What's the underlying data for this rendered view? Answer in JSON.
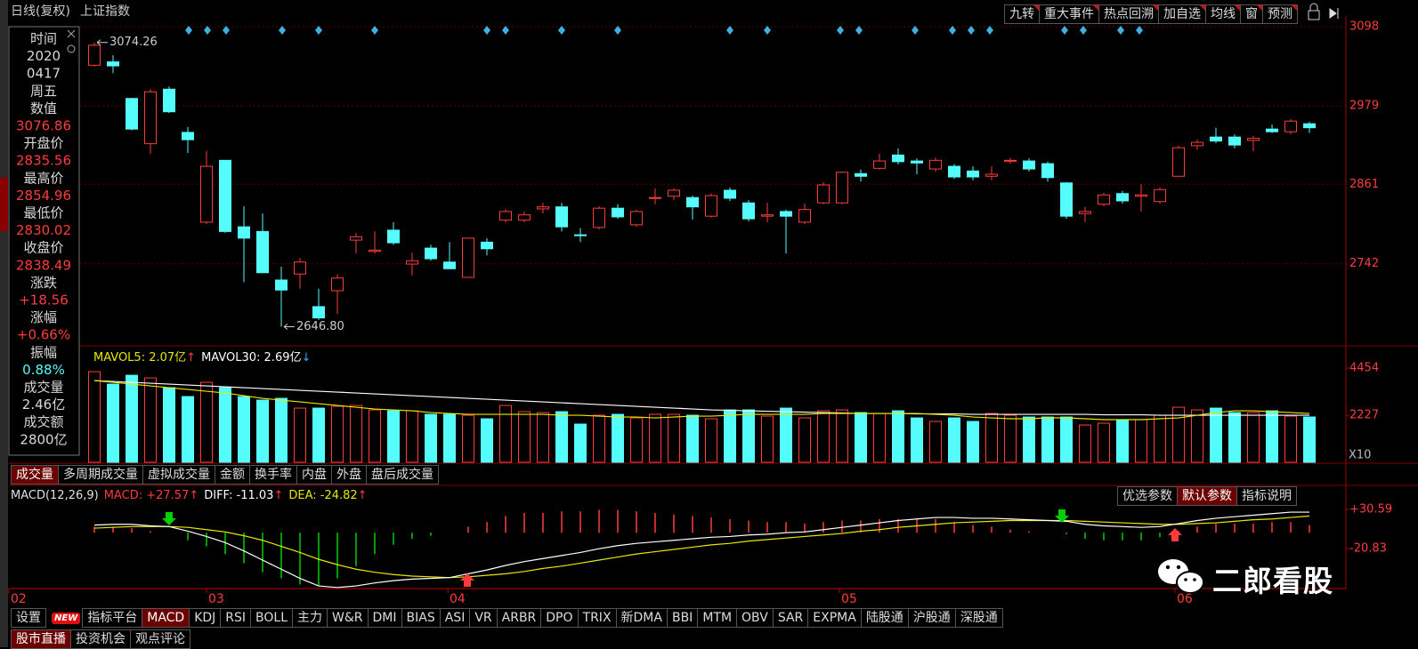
{
  "header": {
    "period": "日线(复权)",
    "symbol": "上证指数"
  },
  "top_buttons": [
    "九转",
    "重大事件",
    "热点回溯",
    "加自选",
    "均线",
    "窗",
    "预测"
  ],
  "info_panel": {
    "rows": [
      {
        "label": "时间",
        "values": [
          "2020",
          "0417",
          "周五"
        ],
        "color": "#d8d8d8"
      },
      {
        "label": "数值",
        "values": [
          "3076.86"
        ],
        "color": "#ff3c3c"
      },
      {
        "label": "开盘价",
        "values": [
          "2835.56"
        ],
        "color": "#ff3c3c"
      },
      {
        "label": "最高价",
        "values": [
          "2854.96"
        ],
        "color": "#ff3c3c"
      },
      {
        "label": "最低价",
        "values": [
          "2830.02"
        ],
        "color": "#ff3c3c"
      },
      {
        "label": "收盘价",
        "values": [
          "2838.49"
        ],
        "color": "#ff3c3c"
      },
      {
        "label": "涨跌",
        "values": [
          "+18.56"
        ],
        "color": "#ff3c3c"
      },
      {
        "label": "涨幅",
        "values": [
          "+0.66%"
        ],
        "color": "#ff3c3c"
      },
      {
        "label": "振幅",
        "values": [
          "0.88%"
        ],
        "color": "#54fcfc"
      },
      {
        "label": "成交量",
        "values": [
          "2.46亿"
        ],
        "color": "#d8d8d8"
      },
      {
        "label": "成交额",
        "values": [
          "2800亿"
        ],
        "color": "#d8d8d8"
      }
    ]
  },
  "price_chart": {
    "up_color": "#ff3c3c",
    "down_color": "#54fcfc",
    "grid": true,
    "ylim": [
      2619.4,
      3124.7
    ],
    "yticks": [
      3098,
      2979,
      2861,
      2742
    ],
    "open": [
      3040,
      3045,
      2990,
      2922,
      3004,
      2939,
      2804,
      2897,
      2797,
      2790,
      2717,
      2726,
      2677,
      2701,
      2777,
      2760,
      2792,
      2741,
      2765,
      2744,
      2721,
      2774,
      2807,
      2807,
      2824,
      2827,
      2785,
      2796,
      2825,
      2800,
      2840,
      2843,
      2841,
      2813,
      2852,
      2833,
      2813,
      2820,
      2804,
      2833,
      2833,
      2877,
      2885,
      2905,
      2896,
      2884,
      2888,
      2881,
      2873,
      2896,
      2896,
      2892,
      2863,
      2817,
      2831,
      2847,
      2843,
      2835,
      2873,
      2919,
      2932,
      2932,
      2927,
      2944,
      2940,
      2952
    ],
    "high": [
      3074.26,
      3055,
      2991,
      3004,
      3008,
      2947,
      2911,
      2897,
      2828,
      2817,
      2737,
      2750,
      2704,
      2726,
      2788,
      2790,
      2804,
      2758,
      2770,
      2774,
      2780,
      2780,
      2823,
      2820,
      2833,
      2833,
      2795,
      2828,
      2831,
      2823,
      2855,
      2855,
      2844,
      2847,
      2856,
      2837,
      2833,
      2823,
      2832,
      2864,
      2880,
      2883,
      2907,
      2915,
      2900,
      2901,
      2891,
      2888,
      2888,
      2901,
      2900,
      2895,
      2864,
      2827,
      2848,
      2851,
      2861,
      2856,
      2919,
      2928,
      2946,
      2936,
      2934,
      2951,
      2959,
      2955
    ],
    "low": [
      3038,
      3028,
      2942,
      2907,
      2968,
      2908,
      2801,
      2788,
      2714,
      2728,
      2646.8,
      2704,
      2657,
      2666,
      2757,
      2757,
      2770,
      2724,
      2746,
      2733,
      2721,
      2754,
      2804,
      2804,
      2817,
      2790,
      2774,
      2793,
      2809,
      2797,
      2831,
      2837,
      2808,
      2811,
      2836,
      2805,
      2804,
      2757,
      2801,
      2831,
      2831,
      2865,
      2883,
      2891,
      2876,
      2880,
      2869,
      2867,
      2867,
      2892,
      2880,
      2865,
      2809,
      2804,
      2828,
      2832,
      2820,
      2832,
      2872,
      2913,
      2923,
      2915,
      2911,
      2938,
      2936,
      2938
    ],
    "close": [
      3070,
      3039,
      2944,
      3000,
      2970,
      2928,
      2888,
      2790,
      2780,
      2728,
      2702,
      2744,
      2660,
      2720,
      2782,
      2762,
      2773,
      2746,
      2749,
      2734,
      2780,
      2764,
      2820,
      2815,
      2827,
      2797,
      2784,
      2825,
      2812,
      2820,
      2841,
      2852,
      2827,
      2844,
      2840,
      2809,
      2815,
      2813,
      2823,
      2860,
      2879,
      2873,
      2896,
      2895,
      2893,
      2897,
      2872,
      2872,
      2876,
      2897,
      2884,
      2871,
      2813,
      2820,
      2845,
      2836,
      2845,
      2853,
      2916,
      2924,
      2926,
      2920,
      2930,
      2940,
      2956,
      2946
    ],
    "extremes": {
      "high": {
        "value": 3074.26,
        "label": "3074.26"
      },
      "low": {
        "value": 2646.8,
        "label": "2646.80"
      }
    }
  },
  "volume_chart": {
    "ylim": [
      0,
      5380
    ],
    "yticks": [
      4454,
      2227
    ],
    "scale_label": "X10",
    "legend": [
      {
        "text": "MAVOL5: 2.07亿",
        "arrow": "↑",
        "color": "#e8e800",
        "arrow_color": "#ff3c3c"
      },
      {
        "text": "MAVOL30: 2.69亿",
        "arrow": "↓",
        "color": "#ffffff",
        "arrow_color": "#3aa0ff"
      }
    ],
    "values": [
      4284,
      3696,
      4116,
      3990,
      3528,
      3108,
      3780,
      3528,
      3108,
      2940,
      3024,
      2562,
      2562,
      2646,
      2688,
      2478,
      2436,
      2436,
      2268,
      2268,
      2226,
      2058,
      2688,
      2394,
      2352,
      2394,
      1806,
      2226,
      2268,
      2100,
      2268,
      2268,
      2226,
      2058,
      2478,
      2478,
      2184,
      2562,
      2100,
      2436,
      2478,
      2352,
      2310,
      2436,
      2100,
      1932,
      2100,
      1932,
      2310,
      2226,
      2142,
      2142,
      2142,
      1764,
      1848,
      2016,
      2016,
      2226,
      2604,
      2478,
      2562,
      2352,
      2352,
      2436,
      2184,
      2142
    ],
    "mavol5": [
      3864,
      3780,
      3696,
      3612,
      3528,
      3444,
      3360,
      3276,
      3150,
      3024,
      2940,
      2856,
      2772,
      2688,
      2604,
      2520,
      2478,
      2436,
      2352,
      2310,
      2268,
      2268,
      2268,
      2268,
      2268,
      2226,
      2226,
      2184,
      2142,
      2142,
      2100,
      2142,
      2184,
      2184,
      2226,
      2268,
      2268,
      2268,
      2268,
      2310,
      2310,
      2310,
      2310,
      2310,
      2310,
      2268,
      2226,
      2142,
      2100,
      2058,
      2058,
      2100,
      2100,
      2058,
      2016,
      2016,
      2016,
      2058,
      2100,
      2226,
      2352,
      2436,
      2436,
      2394,
      2352,
      2310
    ],
    "mavol30": [
      3864,
      3822,
      3780,
      3738,
      3696,
      3654,
      3612,
      3570,
      3528,
      3486,
      3444,
      3402,
      3360,
      3318,
      3276,
      3234,
      3192,
      3150,
      3108,
      3066,
      3024,
      2982,
      2940,
      2898,
      2856,
      2814,
      2772,
      2730,
      2688,
      2646,
      2604,
      2562,
      2520,
      2478,
      2457,
      2436,
      2415,
      2394,
      2373,
      2352,
      2331,
      2310,
      2310,
      2310,
      2289,
      2289,
      2289,
      2268,
      2268,
      2268,
      2268,
      2268,
      2268,
      2268,
      2247,
      2247,
      2247,
      2226,
      2226,
      2226,
      2226,
      2226,
      2226,
      2226,
      2226,
      2226
    ],
    "tabs": [
      {
        "label": "成交量",
        "selected": true
      },
      {
        "label": "多周期成交量"
      },
      {
        "label": "虚拟成交量"
      },
      {
        "label": "金额"
      },
      {
        "label": "换手率"
      },
      {
        "label": "内盘"
      },
      {
        "label": "外盘"
      },
      {
        "label": "盘后成交量"
      }
    ]
  },
  "macd_chart": {
    "ylim": [
      -73.4,
      59.8
    ],
    "yticks": [
      {
        "value": 30.59,
        "label": "+30.59"
      },
      -20.83
    ],
    "pos_color": "#ff3c3c",
    "neg_color": "#00d000",
    "legend": [
      {
        "text": "MACD(12,26,9)",
        "color": "#e0e0e0"
      },
      {
        "text": "MACD: +27.57",
        "arrow": "↑",
        "color": "#ff3c3c",
        "arrow_color": "#ff3c3c"
      },
      {
        "text": "DIFF: -11.03",
        "arrow": "↑",
        "color": "#ffffff",
        "arrow_color": "#ff3c3c"
      },
      {
        "text": "DEA: -24.82",
        "arrow": "↑",
        "color": "#e8e800",
        "arrow_color": "#ff3c3c"
      }
    ],
    "buttons": [
      {
        "label": "优选参数"
      },
      {
        "label": "默认参数",
        "selected": true
      },
      {
        "label": "指标说明"
      }
    ],
    "diff": [
      10,
      11,
      11,
      9,
      8,
      2,
      -5,
      -13,
      -24,
      -36,
      -48,
      -60,
      -70,
      -72,
      -70,
      -66,
      -63,
      -61,
      -60,
      -59,
      -54,
      -49,
      -43,
      -38,
      -34,
      -30,
      -26,
      -21,
      -17,
      -14,
      -12,
      -10,
      -8,
      -6,
      -5,
      -3,
      -2,
      0,
      1,
      4,
      7,
      10,
      13,
      16,
      18,
      20,
      20,
      19,
      19,
      18,
      17,
      16,
      15,
      11,
      9,
      8,
      7,
      8,
      12,
      16,
      19,
      21,
      23,
      25,
      27,
      27
    ],
    "dea": [
      6,
      7,
      8,
      8,
      8,
      7,
      4,
      1,
      -4,
      -10,
      -18,
      -26,
      -35,
      -42,
      -48,
      -52,
      -55,
      -57,
      -58,
      -59,
      -58,
      -56,
      -54,
      -51,
      -47,
      -44,
      -40,
      -36,
      -32,
      -28,
      -25,
      -22,
      -19,
      -16,
      -14,
      -11,
      -9,
      -7,
      -5,
      -3,
      -1,
      2,
      4,
      7,
      9,
      11,
      13,
      14,
      15,
      16,
      16,
      16,
      16,
      15,
      14,
      13,
      12,
      11,
      11,
      12,
      13,
      15,
      17,
      18,
      20,
      22
    ],
    "macd": [
      8,
      8,
      6,
      2,
      0,
      -10,
      -18,
      -28,
      -40,
      -52,
      -60,
      -68,
      -70,
      -60,
      -44,
      -28,
      -16,
      -8,
      -4,
      0,
      8,
      14,
      22,
      26,
      26,
      28,
      28,
      30,
      30,
      28,
      26,
      24,
      22,
      20,
      18,
      16,
      14,
      14,
      12,
      14,
      16,
      16,
      18,
      18,
      18,
      18,
      14,
      10,
      8,
      4,
      2,
      0,
      -2,
      -8,
      -10,
      -10,
      -10,
      -6,
      2,
      8,
      12,
      12,
      12,
      14,
      14,
      10
    ]
  },
  "x_axis": {
    "labels": [
      "02",
      "03",
      "04",
      "05",
      "06"
    ]
  },
  "watermark": "二郎看股",
  "toolbar": [
    {
      "label": "设置"
    },
    {
      "label": "NEW",
      "badge": true
    },
    {
      "label": "指标平台"
    },
    {
      "label": "MACD",
      "selected": true
    },
    {
      "label": "KDJ"
    },
    {
      "label": "RSI"
    },
    {
      "label": "BOLL"
    },
    {
      "label": "主力"
    },
    {
      "label": "W&R"
    },
    {
      "label": "DMI"
    },
    {
      "label": "BIAS"
    },
    {
      "label": "ASI"
    },
    {
      "label": "VR"
    },
    {
      "label": "ARBR"
    },
    {
      "label": "DPO"
    },
    {
      "label": "TRIX"
    },
    {
      "label": "新DMA"
    },
    {
      "label": "BBI"
    },
    {
      "label": "MTM"
    },
    {
      "label": "OBV"
    },
    {
      "label": "SAR"
    },
    {
      "label": "EXPMA"
    },
    {
      "label": "陆股通"
    },
    {
      "label": "沪股通"
    },
    {
      "label": "深股通"
    }
  ],
  "bottom_tabs": [
    {
      "label": "股市直播",
      "selected": true
    },
    {
      "label": "投资机会"
    },
    {
      "label": "观点评论"
    }
  ]
}
